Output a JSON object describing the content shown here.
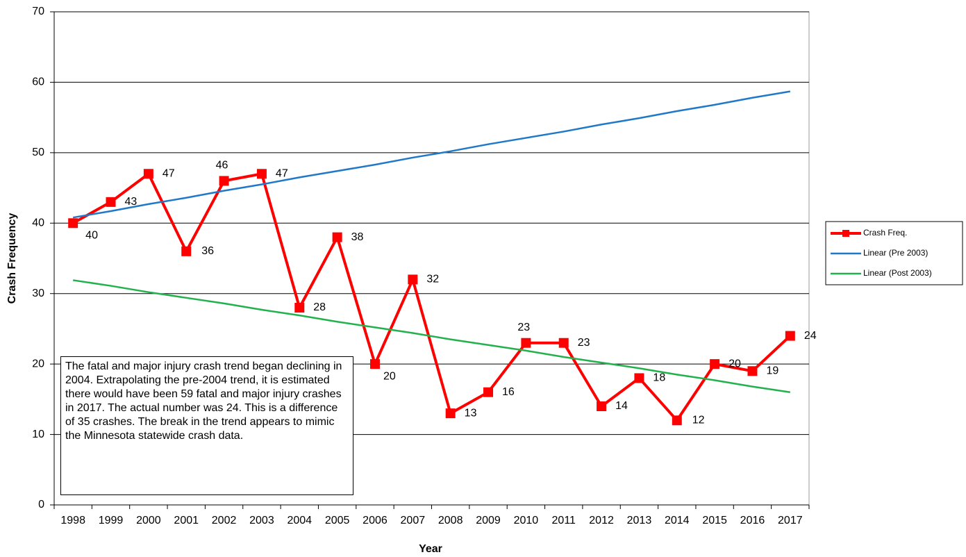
{
  "chart_data": {
    "type": "line",
    "x_label": "Year",
    "y_label": "Crash Frequency",
    "annotation": "The fatal and major injury crash trend began declining in 2004. Extrapolating the pre-2004 trend, it is estimated there would have been 59 fatal and major injury crashes in 2017. The actual number was 24. This is a difference of 35 crashes. The break in the trend appears to mimic the Minnesota statewide crash data.",
    "categories": [
      "1998",
      "1999",
      "2000",
      "2001",
      "2002",
      "2003",
      "2004",
      "2005",
      "2006",
      "2007",
      "2008",
      "2009",
      "2010",
      "2011",
      "2012",
      "2013",
      "2014",
      "2015",
      "2016",
      "2017"
    ],
    "series": [
      {
        "name": "Crash Freq.",
        "color": "#ff0000",
        "markers": true,
        "data_labels": true,
        "values": [
          40,
          43,
          47,
          36,
          46,
          47,
          28,
          38,
          20,
          32,
          13,
          16,
          23,
          23,
          14,
          18,
          12,
          20,
          19,
          24
        ]
      },
      {
        "name": "Linear (Pre 2003)",
        "color": "#1f78c8",
        "values": [
          40.8,
          41.7,
          42.7,
          43.6,
          44.6,
          45.5,
          46.5,
          47.4,
          48.3,
          49.3,
          50.2,
          51.2,
          52.1,
          53.0,
          54.0,
          54.9,
          55.9,
          56.8,
          57.8,
          58.7
        ]
      },
      {
        "name": "Linear (Post 2003)",
        "color": "#22b14c",
        "values": [
          31.9,
          31.1,
          30.2,
          29.4,
          28.6,
          27.7,
          26.9,
          26.0,
          25.2,
          24.4,
          23.5,
          22.7,
          21.9,
          21.0,
          20.2,
          19.4,
          18.5,
          17.7,
          16.8,
          16.0
        ]
      }
    ],
    "ylim": [
      0,
      70
    ],
    "yticks": [
      0,
      10,
      20,
      30,
      40,
      50,
      60,
      70
    ],
    "grid": true,
    "legend": "right"
  }
}
